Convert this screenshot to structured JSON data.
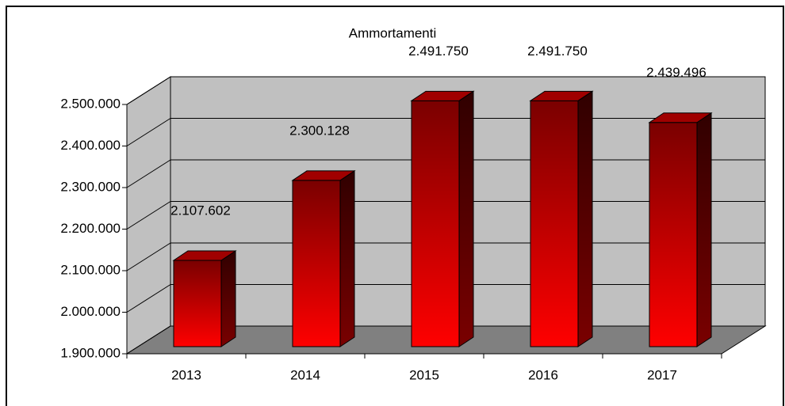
{
  "chart_data": {
    "type": "bar3d",
    "title": "Ammortamenti",
    "categories": [
      "2013",
      "2014",
      "2015",
      "2016",
      "2017"
    ],
    "values": [
      2107602,
      2300128,
      2491750,
      2491750,
      2439496
    ],
    "value_labels": [
      "2.107.602",
      "2.300.128",
      "2.491.750",
      "2.491.750",
      "2.439.496"
    ],
    "color": "#ff0000",
    "ylim": [
      1900000,
      2500000
    ],
    "yticks": [
      {
        "value": 1900000,
        "label": "1.900.000"
      },
      {
        "value": 2000000,
        "label": "2.000.000"
      },
      {
        "value": 2100000,
        "label": "2.100.000"
      },
      {
        "value": 2200000,
        "label": "2.200.000"
      },
      {
        "value": 2300000,
        "label": "2.300.000"
      },
      {
        "value": 2400000,
        "label": "2.400.000"
      },
      {
        "value": 2500000,
        "label": "2.500.000"
      }
    ],
    "grid": true
  }
}
